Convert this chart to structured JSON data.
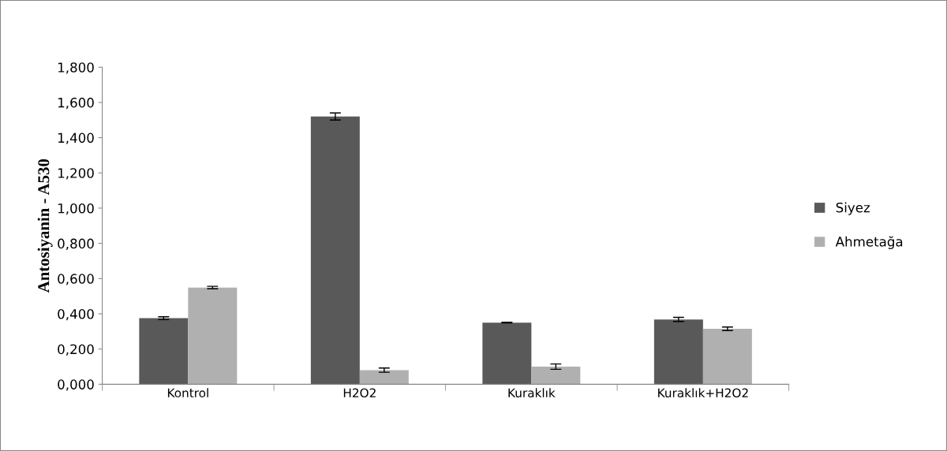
{
  "chart_data": {
    "type": "bar",
    "ylabel": "Antosiyanin - A530",
    "categories": [
      "Kontrol",
      "H2O2",
      "Kuraklık",
      "Kuraklık+H2O2"
    ],
    "series": [
      {
        "name": "Siyez",
        "color": "#595959",
        "values": [
          0.375,
          1.52,
          0.35,
          0.368
        ],
        "errors": [
          0.008,
          0.02,
          0.002,
          0.012
        ]
      },
      {
        "name": "Ahmetağa",
        "color": "#b0b0b0",
        "values": [
          0.549,
          0.08,
          0.1,
          0.315
        ],
        "errors": [
          0.007,
          0.012,
          0.015,
          0.01
        ]
      }
    ],
    "ylim": [
      0,
      1.8
    ],
    "yticks": [
      {
        "value": 0,
        "label": "0,000"
      },
      {
        "value": 0.2,
        "label": "0,200"
      },
      {
        "value": 0.4,
        "label": "0,400"
      },
      {
        "value": 0.6,
        "label": "0,600"
      },
      {
        "value": 0.8,
        "label": "0,800"
      },
      {
        "value": 1.0,
        "label": "1,000"
      },
      {
        "value": 1.2,
        "label": "1,200"
      },
      {
        "value": 1.4,
        "label": "1,400"
      },
      {
        "value": 1.6,
        "label": "1,600"
      },
      {
        "value": 1.8,
        "label": "1,800"
      }
    ],
    "grid": false,
    "legend": "right"
  }
}
